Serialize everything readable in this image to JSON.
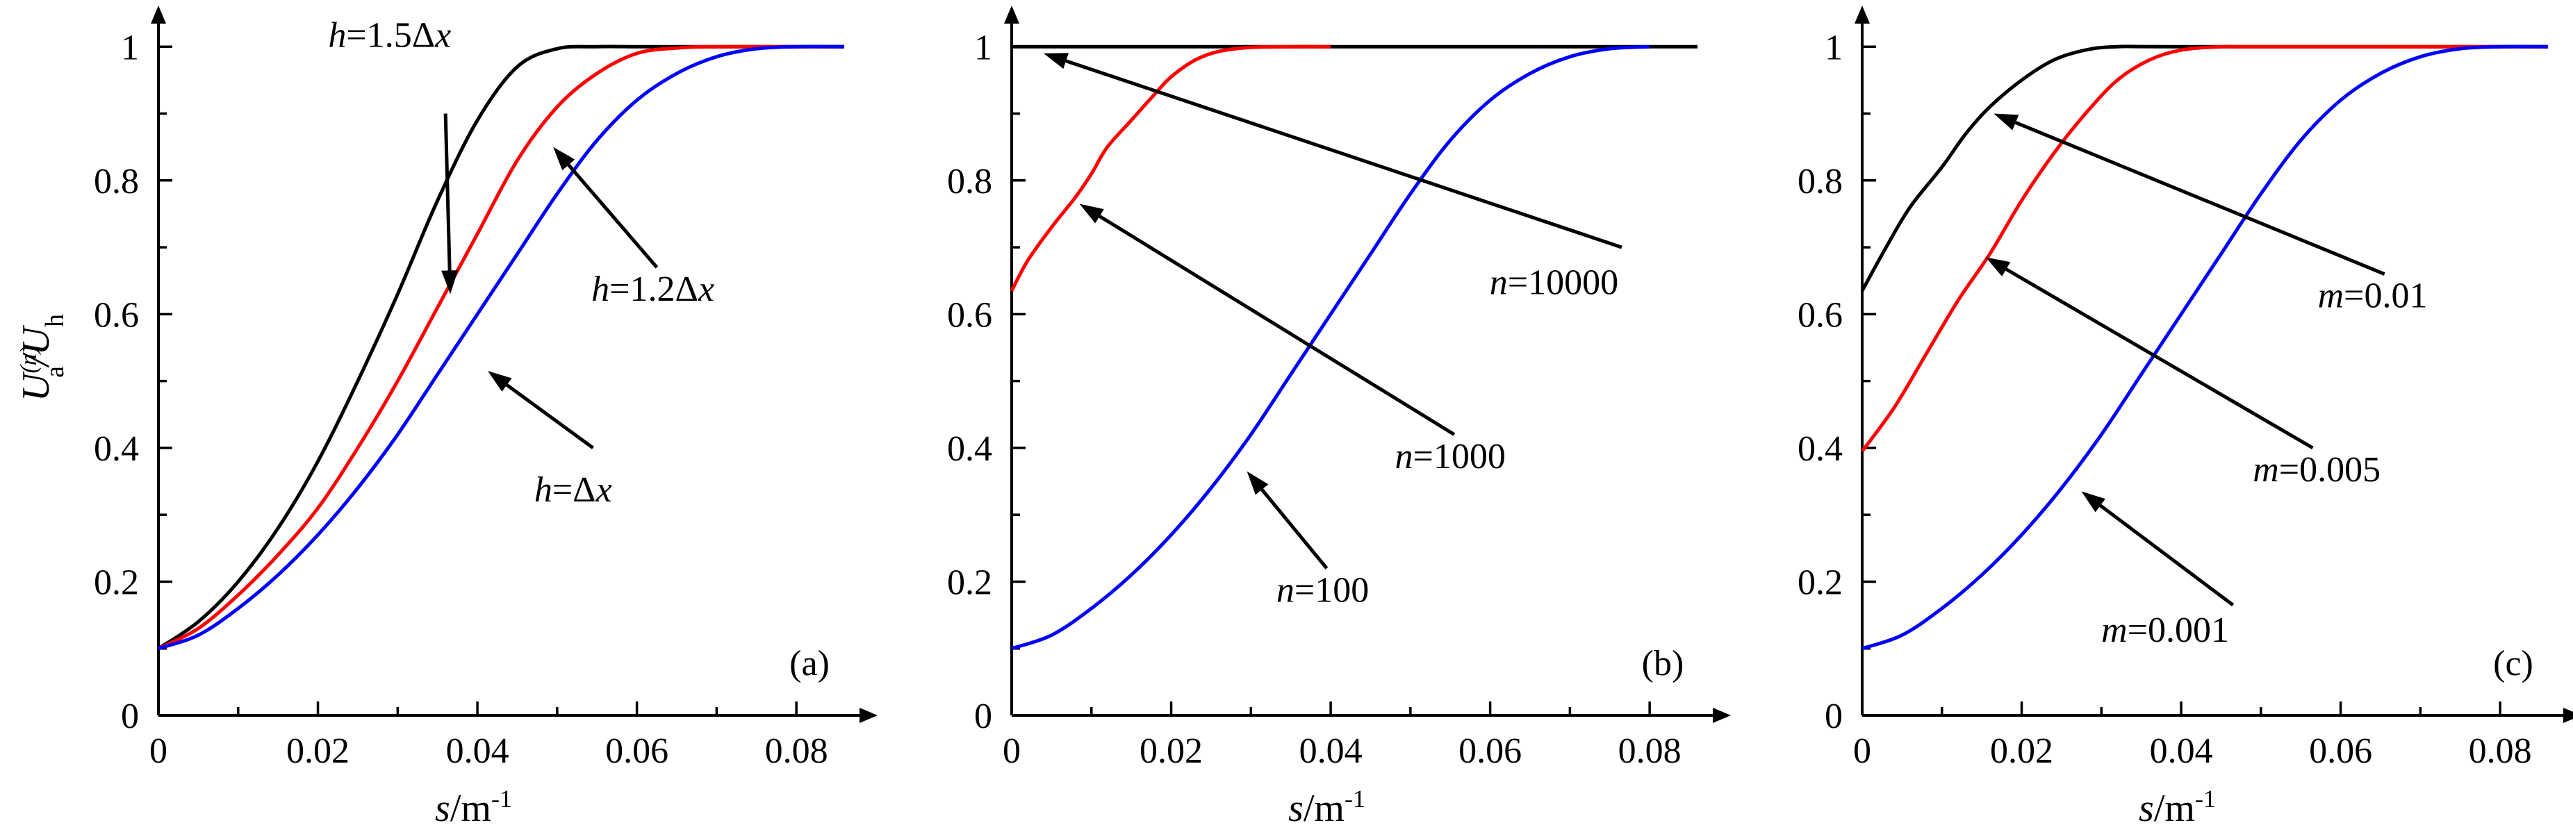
{
  "ylabel": {
    "U": "U",
    "sup": "(n)",
    "sub_a": "a",
    "slash": "/U",
    "sub_h": "h"
  },
  "colors": {
    "black": "#000000",
    "red": "#ff0000",
    "blue": "#0000ff"
  },
  "chart_data": [
    {
      "type": "line",
      "panel_label": "(a)",
      "xlabel": "s/m",
      "xlabel_sup": "-1",
      "xlim": [
        0,
        0.086
      ],
      "ylim": [
        0,
        1.02
      ],
      "xticks": [
        "0",
        "0.02",
        "0.04",
        "0.06",
        "0.08"
      ],
      "yticks": [
        "0",
        "0.2",
        "0.4",
        "0.6",
        "0.8",
        "1"
      ],
      "series": [
        {
          "key": "k",
          "color": "black",
          "x": [
            0,
            0.005,
            0.01,
            0.015,
            0.02,
            0.025,
            0.03,
            0.035,
            0.04,
            0.045,
            0.05,
            0.055,
            0.06,
            0.065,
            0.07,
            0.08,
            0.086
          ],
          "y": [
            0.1,
            0.14,
            0.2,
            0.28,
            0.38,
            0.5,
            0.63,
            0.77,
            0.89,
            0.97,
            0.997,
            1,
            1,
            1,
            1,
            1,
            1
          ]
        },
        {
          "key": "r",
          "color": "red",
          "x": [
            0,
            0.005,
            0.01,
            0.015,
            0.02,
            0.025,
            0.03,
            0.035,
            0.04,
            0.045,
            0.05,
            0.055,
            0.06,
            0.065,
            0.07,
            0.08,
            0.086
          ],
          "y": [
            0.1,
            0.13,
            0.18,
            0.24,
            0.31,
            0.4,
            0.5,
            0.61,
            0.72,
            0.83,
            0.91,
            0.96,
            0.99,
            0.998,
            1,
            1,
            1
          ]
        },
        {
          "key": "b",
          "color": "blue",
          "x": [
            0,
            0.005,
            0.01,
            0.015,
            0.02,
            0.025,
            0.03,
            0.035,
            0.04,
            0.045,
            0.05,
            0.055,
            0.06,
            0.065,
            0.07,
            0.075,
            0.08,
            0.086
          ],
          "y": [
            0.1,
            0.12,
            0.16,
            0.21,
            0.27,
            0.34,
            0.42,
            0.51,
            0.6,
            0.69,
            0.78,
            0.86,
            0.92,
            0.96,
            0.985,
            0.997,
            1,
            1
          ]
        }
      ],
      "annotations": [
        {
          "parts": [
            {
              "t": "h",
              "i": true
            },
            {
              "t": "=1.5Δ",
              "i": false
            },
            {
              "t": "x",
              "i": true
            }
          ],
          "tx": 0.029,
          "ty": 1.0,
          "ax": 0.036,
          "ay": 0.9,
          "hx": 0.0366,
          "hy": 0.63
        },
        {
          "parts": [
            {
              "t": "h",
              "i": true
            },
            {
              "t": "=1.2Δ",
              "i": false
            },
            {
              "t": "x",
              "i": true
            }
          ],
          "tx": 0.062,
          "ty": 0.62,
          "ax": 0.0625,
          "ay": 0.67,
          "hx": 0.0495,
          "hy": 0.85
        },
        {
          "parts": [
            {
              "t": "h",
              "i": true
            },
            {
              "t": "=Δ",
              "i": false
            },
            {
              "t": "x",
              "i": true
            }
          ],
          "tx": 0.052,
          "ty": 0.32,
          "ax": 0.0545,
          "ay": 0.4,
          "hx": 0.0413,
          "hy": 0.515
        }
      ]
    },
    {
      "type": "line",
      "panel_label": "(b)",
      "xlabel": "s/m",
      "xlabel_sup": "-1",
      "xlim": [
        0,
        0.086
      ],
      "ylim": [
        0,
        1.02
      ],
      "xticks": [
        "0",
        "0.02",
        "0.04",
        "0.06",
        "0.08"
      ],
      "yticks": [
        "0",
        "0.2",
        "0.4",
        "0.6",
        "0.8",
        "1"
      ],
      "series": [
        {
          "key": "k",
          "color": "black",
          "x": [
            0,
            0.086
          ],
          "y": [
            1,
            1
          ]
        },
        {
          "key": "r",
          "color": "red",
          "x": [
            0,
            0.002,
            0.005,
            0.008,
            0.01,
            0.012,
            0.015,
            0.018,
            0.02,
            0.023,
            0.026,
            0.03,
            0.035,
            0.04
          ],
          "y": [
            0.635,
            0.68,
            0.73,
            0.775,
            0.81,
            0.85,
            0.89,
            0.93,
            0.955,
            0.98,
            0.993,
            0.999,
            1,
            1
          ]
        },
        {
          "key": "b",
          "color": "blue",
          "x": [
            0,
            0.005,
            0.01,
            0.015,
            0.02,
            0.025,
            0.03,
            0.035,
            0.04,
            0.045,
            0.05,
            0.055,
            0.06,
            0.065,
            0.07,
            0.075,
            0.08
          ],
          "y": [
            0.1,
            0.12,
            0.16,
            0.21,
            0.27,
            0.34,
            0.42,
            0.51,
            0.6,
            0.69,
            0.78,
            0.86,
            0.92,
            0.96,
            0.985,
            0.997,
            1
          ]
        }
      ],
      "annotations": [
        {
          "parts": [
            {
              "t": "n",
              "i": true
            },
            {
              "t": "=10000",
              "i": false
            }
          ],
          "tx": 0.068,
          "ty": 0.63,
          "ax": 0.0765,
          "ay": 0.7,
          "hx": 0.004,
          "hy": 0.99
        },
        {
          "parts": [
            {
              "t": "n",
              "i": true
            },
            {
              "t": "=1000",
              "i": false
            }
          ],
          "tx": 0.055,
          "ty": 0.37,
          "ax": 0.0555,
          "ay": 0.42,
          "hx": 0.0085,
          "hy": 0.765
        },
        {
          "parts": [
            {
              "t": "n",
              "i": true
            },
            {
              "t": "=100",
              "i": false
            }
          ],
          "tx": 0.039,
          "ty": 0.17,
          "ax": 0.0395,
          "ay": 0.22,
          "hx": 0.0295,
          "hy": 0.365
        }
      ]
    },
    {
      "type": "line",
      "panel_label": "(c)",
      "xlabel": "s/m",
      "xlabel_sup": "-1",
      "xlim": [
        0,
        0.086
      ],
      "ylim": [
        0,
        1.02
      ],
      "xticks": [
        "0",
        "0.02",
        "0.04",
        "0.06",
        "0.08"
      ],
      "yticks": [
        "0",
        "0.2",
        "0.4",
        "0.6",
        "0.8",
        "1"
      ],
      "series": [
        {
          "key": "k",
          "color": "black",
          "x": [
            0,
            0.003,
            0.006,
            0.01,
            0.013,
            0.016,
            0.02,
            0.024,
            0.028,
            0.032,
            0.04,
            0.086
          ],
          "y": [
            0.635,
            0.7,
            0.76,
            0.82,
            0.87,
            0.91,
            0.95,
            0.98,
            0.995,
            1,
            1,
            1
          ]
        },
        {
          "key": "r",
          "color": "red",
          "x": [
            0,
            0.004,
            0.008,
            0.012,
            0.016,
            0.02,
            0.024,
            0.028,
            0.032,
            0.036,
            0.04,
            0.045,
            0.05,
            0.086
          ],
          "y": [
            0.395,
            0.46,
            0.54,
            0.62,
            0.69,
            0.77,
            0.84,
            0.9,
            0.95,
            0.98,
            0.995,
            1,
            1,
            1
          ]
        },
        {
          "key": "b",
          "color": "blue",
          "x": [
            0,
            0.005,
            0.01,
            0.015,
            0.02,
            0.025,
            0.03,
            0.035,
            0.04,
            0.045,
            0.05,
            0.055,
            0.06,
            0.065,
            0.07,
            0.075,
            0.08,
            0.086
          ],
          "y": [
            0.1,
            0.12,
            0.16,
            0.21,
            0.27,
            0.34,
            0.42,
            0.51,
            0.6,
            0.69,
            0.78,
            0.86,
            0.92,
            0.96,
            0.985,
            0.997,
            1,
            1
          ]
        }
      ],
      "annotations": [
        {
          "parts": [
            {
              "t": "m",
              "i": true
            },
            {
              "t": "=0.01",
              "i": false
            }
          ],
          "tx": 0.064,
          "ty": 0.61,
          "ax": 0.0655,
          "ay": 0.66,
          "hx": 0.0165,
          "hy": 0.9
        },
        {
          "parts": [
            {
              "t": "m",
              "i": true
            },
            {
              "t": "=0.005",
              "i": false
            }
          ],
          "tx": 0.057,
          "ty": 0.35,
          "ax": 0.0565,
          "ay": 0.4,
          "hx": 0.0155,
          "hy": 0.685
        },
        {
          "parts": [
            {
              "t": "m",
              "i": true
            },
            {
              "t": "=0.001",
              "i": false
            }
          ],
          "tx": 0.038,
          "ty": 0.11,
          "ax": 0.0465,
          "ay": 0.165,
          "hx": 0.0275,
          "hy": 0.335
        }
      ]
    }
  ]
}
